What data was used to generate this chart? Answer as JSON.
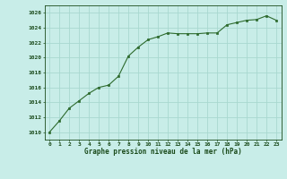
{
  "x": [
    0,
    1,
    2,
    3,
    4,
    5,
    6,
    7,
    8,
    9,
    10,
    11,
    12,
    13,
    14,
    15,
    16,
    17,
    18,
    19,
    20,
    21,
    22,
    23
  ],
  "y": [
    1010.0,
    1011.5,
    1013.2,
    1014.2,
    1015.2,
    1016.0,
    1016.3,
    1017.5,
    1020.2,
    1021.4,
    1022.4,
    1022.8,
    1023.3,
    1023.2,
    1023.2,
    1023.2,
    1023.3,
    1023.3,
    1024.4,
    1024.7,
    1025.0,
    1025.1,
    1025.6,
    1025.0
  ],
  "line_color": "#2d6a2d",
  "marker_color": "#2d6a2d",
  "bg_color": "#c8ede8",
  "grid_color": "#a8d8d0",
  "xlabel": "Graphe pression niveau de la mer (hPa)",
  "xlabel_color": "#1a4a1a",
  "tick_color": "#1a4a1a",
  "ylim": [
    1009,
    1027
  ],
  "xlim": [
    -0.5,
    23.5
  ],
  "yticks": [
    1010,
    1012,
    1014,
    1016,
    1018,
    1020,
    1022,
    1024,
    1026
  ],
  "xticks": [
    0,
    1,
    2,
    3,
    4,
    5,
    6,
    7,
    8,
    9,
    10,
    11,
    12,
    13,
    14,
    15,
    16,
    17,
    18,
    19,
    20,
    21,
    22,
    23
  ],
  "xtick_labels": [
    "0",
    "1",
    "2",
    "3",
    "4",
    "5",
    "6",
    "7",
    "8",
    "9",
    "10",
    "11",
    "12",
    "13",
    "14",
    "15",
    "16",
    "17",
    "18",
    "19",
    "20",
    "21",
    "22",
    "23"
  ]
}
